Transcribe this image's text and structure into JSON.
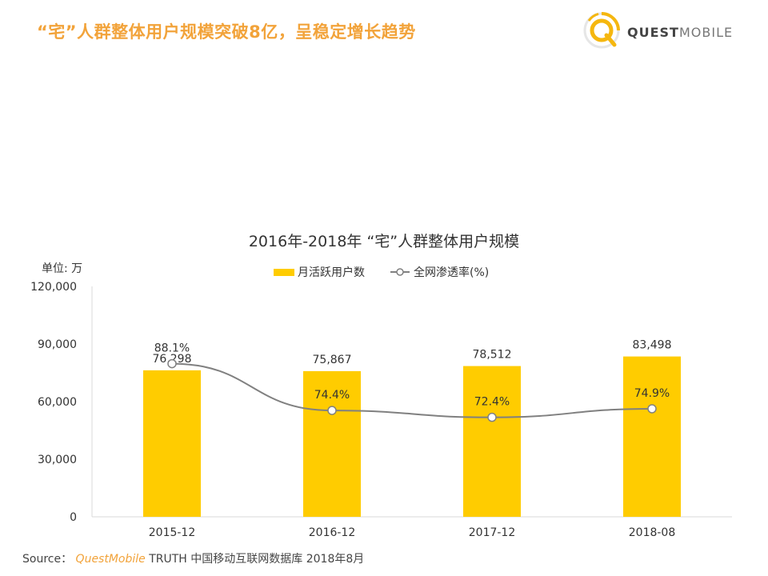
{
  "headline": "“宅”人群整体用户规模突破8亿，呈稳定增长趋势",
  "brand": {
    "name_bold": "QUEST",
    "name_light": "MOBILE",
    "logo_icon": "questmobile-logo-icon",
    "accent": "#f5b70f"
  },
  "source": {
    "label": "Source：",
    "brand": "QuestMobile",
    "text": "TRUTH 中国移动互联网数据库 2018年8月"
  },
  "chart_data": {
    "type": "bar",
    "title": "2016年-2018年 “宅”人群整体用户规模",
    "unit_label": "单位: 万",
    "categories": [
      "2015-12",
      "2016-12",
      "2017-12",
      "2018-08"
    ],
    "ylim": [
      0,
      120000
    ],
    "yticks": [
      "0",
      "30,000",
      "60,000",
      "90,000",
      "120,000"
    ],
    "legend_position": "top-center",
    "grid": false,
    "series": [
      {
        "name": "月活跃用户数",
        "type": "bar",
        "color": "#ffcc00",
        "values": [
          76298,
          75867,
          78512,
          83498
        ],
        "labels": [
          "76,298",
          "75,867",
          "78,512",
          "83,498"
        ]
      },
      {
        "name": "全网渗透率(%)",
        "type": "line",
        "color": "#808080",
        "values": [
          88.1,
          74.4,
          72.4,
          74.9
        ],
        "labels": [
          "88.1%",
          "74.4%",
          "72.4%",
          "74.9%"
        ]
      }
    ]
  }
}
